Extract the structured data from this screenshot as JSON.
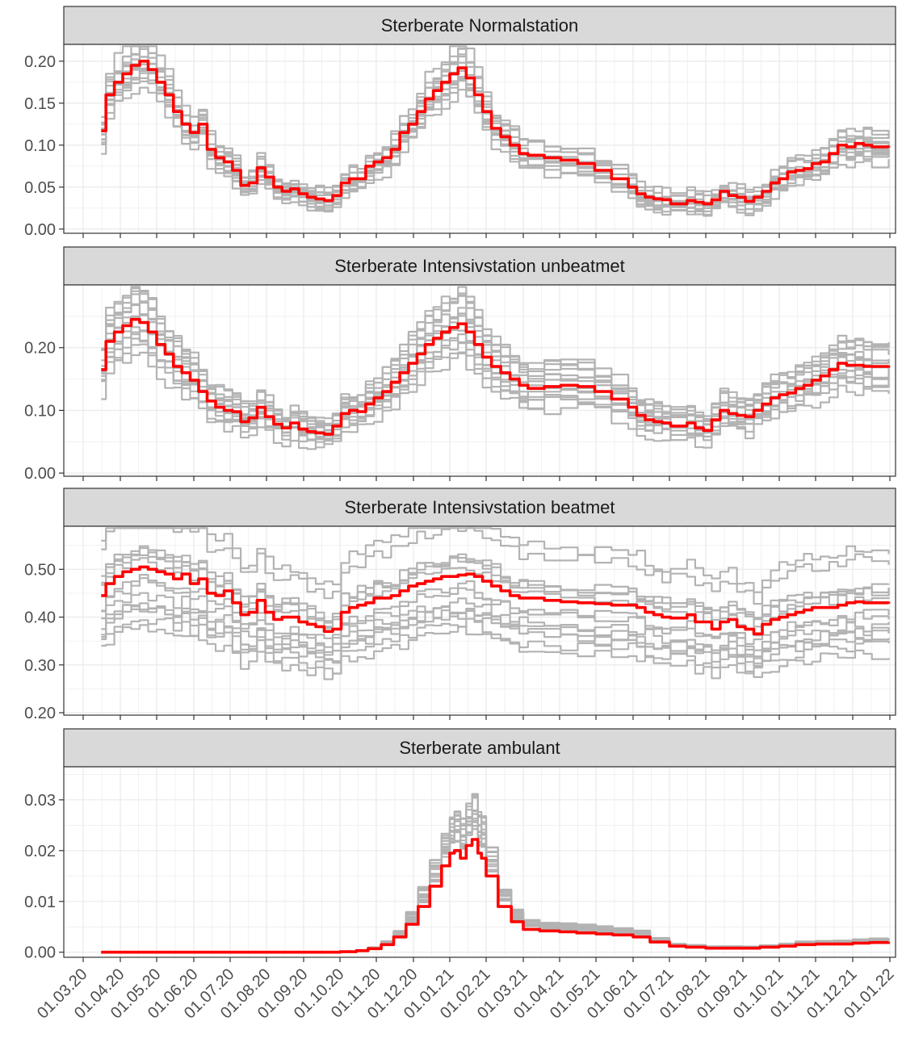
{
  "chart_data": {
    "type": "line",
    "facet_layout": "stacked-vertical",
    "grid": true,
    "legend": "none",
    "x_axis": {
      "type": "date",
      "range": [
        "2020-03-01",
        "2022-01-01"
      ],
      "tick_labels": [
        "01.03.20",
        "01.04.20",
        "01.05.20",
        "01.06.20",
        "01.07.20",
        "01.08.20",
        "01.09.20",
        "01.10.20",
        "01.11.20",
        "01.12.20",
        "01.01.21",
        "01.02.21",
        "01.03.21",
        "01.04.21",
        "01.05.21",
        "01.06.21",
        "01.07.21",
        "01.08.21",
        "01.09.21",
        "01.10.21",
        "01.11.21",
        "01.12.21",
        "01.01.22"
      ],
      "tick_dates": [
        "2020-03-01",
        "2020-04-01",
        "2020-05-01",
        "2020-06-01",
        "2020-07-01",
        "2020-08-01",
        "2020-09-01",
        "2020-10-01",
        "2020-11-01",
        "2020-12-01",
        "2021-01-01",
        "2021-02-01",
        "2021-03-01",
        "2021-04-01",
        "2021-05-01",
        "2021-06-01",
        "2021-07-01",
        "2021-08-01",
        "2021-09-01",
        "2021-10-01",
        "2021-11-01",
        "2021-12-01",
        "2022-01-01"
      ]
    },
    "colors": {
      "highlight": "#ff0000",
      "other": "#b3b3b3",
      "strip": "#d9d9d9",
      "grid": "#ebebeb",
      "border": "#333333"
    },
    "panels": [
      {
        "title": "Sterberate Normalstation",
        "ylim": [
          -0.005,
          0.22
        ],
        "y_ticks": [
          0.0,
          0.05,
          0.1,
          0.15,
          0.2
        ],
        "y_tick_labels": [
          "0.00",
          "0.05",
          "0.10",
          "0.15",
          "0.20"
        ],
        "highlight_series": {
          "x": [
            "2020-03-16",
            "2020-03-20",
            "2020-03-27",
            "2020-04-03",
            "2020-04-10",
            "2020-04-17",
            "2020-04-24",
            "2020-05-01",
            "2020-05-08",
            "2020-05-15",
            "2020-05-22",
            "2020-05-29",
            "2020-06-05",
            "2020-06-12",
            "2020-06-19",
            "2020-06-26",
            "2020-07-03",
            "2020-07-10",
            "2020-07-17",
            "2020-07-24",
            "2020-07-31",
            "2020-08-07",
            "2020-08-14",
            "2020-08-21",
            "2020-08-28",
            "2020-09-04",
            "2020-09-11",
            "2020-09-18",
            "2020-09-25",
            "2020-10-02",
            "2020-10-09",
            "2020-10-16",
            "2020-10-23",
            "2020-10-30",
            "2020-11-06",
            "2020-11-13",
            "2020-11-20",
            "2020-11-27",
            "2020-12-04",
            "2020-12-11",
            "2020-12-18",
            "2020-12-25",
            "2021-01-01",
            "2021-01-08",
            "2021-01-15",
            "2021-01-22",
            "2021-01-29",
            "2021-02-05",
            "2021-02-12",
            "2021-02-19",
            "2021-02-26",
            "2021-03-05",
            "2021-03-19",
            "2021-04-02",
            "2021-04-16",
            "2021-04-30",
            "2021-05-14",
            "2021-05-28",
            "2021-06-04",
            "2021-06-11",
            "2021-06-18",
            "2021-06-25",
            "2021-07-02",
            "2021-07-16",
            "2021-07-23",
            "2021-07-30",
            "2021-08-06",
            "2021-08-13",
            "2021-08-20",
            "2021-08-27",
            "2021-09-03",
            "2021-09-10",
            "2021-09-17",
            "2021-09-24",
            "2021-10-01",
            "2021-10-08",
            "2021-10-15",
            "2021-10-22",
            "2021-10-29",
            "2021-11-05",
            "2021-11-12",
            "2021-11-19",
            "2021-11-26",
            "2021-12-03",
            "2021-12-10",
            "2021-12-17",
            "2021-12-31"
          ],
          "y": [
            0.117,
            0.16,
            0.175,
            0.185,
            0.195,
            0.2,
            0.19,
            0.175,
            0.16,
            0.14,
            0.125,
            0.115,
            0.125,
            0.095,
            0.085,
            0.08,
            0.07,
            0.052,
            0.055,
            0.073,
            0.062,
            0.05,
            0.045,
            0.048,
            0.042,
            0.038,
            0.036,
            0.034,
            0.04,
            0.055,
            0.06,
            0.06,
            0.075,
            0.08,
            0.085,
            0.095,
            0.115,
            0.125,
            0.14,
            0.155,
            0.165,
            0.175,
            0.185,
            0.192,
            0.18,
            0.16,
            0.14,
            0.12,
            0.11,
            0.1,
            0.09,
            0.088,
            0.085,
            0.082,
            0.078,
            0.07,
            0.06,
            0.05,
            0.042,
            0.038,
            0.036,
            0.035,
            0.03,
            0.034,
            0.032,
            0.03,
            0.035,
            0.045,
            0.04,
            0.038,
            0.033,
            0.038,
            0.045,
            0.055,
            0.06,
            0.068,
            0.07,
            0.072,
            0.078,
            0.08,
            0.09,
            0.1,
            0.098,
            0.102,
            0.1,
            0.098,
            0.097
          ]
        },
        "other_series_count": 14
      },
      {
        "title": "Sterberate Intensivstation unbeatmet",
        "ylim": [
          -0.005,
          0.3
        ],
        "y_ticks": [
          0.0,
          0.1,
          0.2
        ],
        "y_tick_labels": [
          "0.00",
          "0.10",
          "0.20"
        ],
        "highlight_series": {
          "x": [
            "2020-03-16",
            "2020-03-20",
            "2020-03-27",
            "2020-04-03",
            "2020-04-10",
            "2020-04-17",
            "2020-04-24",
            "2020-05-01",
            "2020-05-08",
            "2020-05-15",
            "2020-05-22",
            "2020-05-29",
            "2020-06-05",
            "2020-06-12",
            "2020-06-19",
            "2020-06-26",
            "2020-07-03",
            "2020-07-10",
            "2020-07-17",
            "2020-07-24",
            "2020-07-31",
            "2020-08-07",
            "2020-08-14",
            "2020-08-21",
            "2020-08-28",
            "2020-09-04",
            "2020-09-11",
            "2020-09-18",
            "2020-09-25",
            "2020-10-02",
            "2020-10-09",
            "2020-10-16",
            "2020-10-23",
            "2020-10-30",
            "2020-11-06",
            "2020-11-13",
            "2020-11-20",
            "2020-11-27",
            "2020-12-04",
            "2020-12-11",
            "2020-12-18",
            "2020-12-25",
            "2021-01-01",
            "2021-01-08",
            "2021-01-15",
            "2021-01-22",
            "2021-01-29",
            "2021-02-05",
            "2021-02-12",
            "2021-02-19",
            "2021-02-26",
            "2021-03-05",
            "2021-03-19",
            "2021-04-02",
            "2021-04-16",
            "2021-04-30",
            "2021-05-14",
            "2021-05-28",
            "2021-06-04",
            "2021-06-11",
            "2021-06-18",
            "2021-06-25",
            "2021-07-02",
            "2021-07-16",
            "2021-07-23",
            "2021-07-30",
            "2021-08-06",
            "2021-08-13",
            "2021-08-20",
            "2021-08-27",
            "2021-09-03",
            "2021-09-10",
            "2021-09-17",
            "2021-09-24",
            "2021-10-01",
            "2021-10-08",
            "2021-10-15",
            "2021-10-22",
            "2021-10-29",
            "2021-11-05",
            "2021-11-12",
            "2021-11-19",
            "2021-11-26",
            "2021-12-03",
            "2021-12-10",
            "2021-12-17",
            "2021-12-31"
          ],
          "y": [
            0.165,
            0.21,
            0.225,
            0.235,
            0.245,
            0.24,
            0.225,
            0.205,
            0.19,
            0.17,
            0.16,
            0.148,
            0.13,
            0.115,
            0.105,
            0.1,
            0.098,
            0.082,
            0.088,
            0.105,
            0.09,
            0.078,
            0.072,
            0.08,
            0.07,
            0.066,
            0.064,
            0.062,
            0.075,
            0.095,
            0.1,
            0.098,
            0.11,
            0.12,
            0.13,
            0.145,
            0.16,
            0.175,
            0.19,
            0.205,
            0.215,
            0.225,
            0.232,
            0.238,
            0.225,
            0.205,
            0.185,
            0.17,
            0.16,
            0.15,
            0.14,
            0.135,
            0.138,
            0.14,
            0.138,
            0.13,
            0.118,
            0.105,
            0.092,
            0.085,
            0.082,
            0.08,
            0.075,
            0.08,
            0.072,
            0.068,
            0.085,
            0.1,
            0.095,
            0.092,
            0.09,
            0.1,
            0.11,
            0.12,
            0.125,
            0.128,
            0.135,
            0.14,
            0.148,
            0.155,
            0.165,
            0.175,
            0.172,
            0.172,
            0.17,
            0.17,
            0.168
          ]
        },
        "other_series_count": 14
      },
      {
        "title": "Sterberate Intensivstation beatmet",
        "ylim": [
          0.195,
          0.59
        ],
        "y_ticks": [
          0.2,
          0.3,
          0.4,
          0.5
        ],
        "y_tick_labels": [
          "0.20",
          "0.30",
          "0.40",
          "0.50"
        ],
        "highlight_series": {
          "x": [
            "2020-03-16",
            "2020-03-20",
            "2020-03-27",
            "2020-04-03",
            "2020-04-10",
            "2020-04-17",
            "2020-04-24",
            "2020-05-01",
            "2020-05-08",
            "2020-05-15",
            "2020-05-22",
            "2020-05-29",
            "2020-06-05",
            "2020-06-12",
            "2020-06-19",
            "2020-06-26",
            "2020-07-03",
            "2020-07-10",
            "2020-07-17",
            "2020-07-24",
            "2020-07-31",
            "2020-08-07",
            "2020-08-14",
            "2020-08-21",
            "2020-08-28",
            "2020-09-04",
            "2020-09-11",
            "2020-09-18",
            "2020-09-25",
            "2020-10-02",
            "2020-10-09",
            "2020-10-16",
            "2020-10-23",
            "2020-10-30",
            "2020-11-06",
            "2020-11-13",
            "2020-11-20",
            "2020-11-27",
            "2020-12-04",
            "2020-12-11",
            "2020-12-18",
            "2020-12-25",
            "2021-01-01",
            "2021-01-08",
            "2021-01-15",
            "2021-01-22",
            "2021-01-29",
            "2021-02-05",
            "2021-02-12",
            "2021-02-19",
            "2021-02-26",
            "2021-03-05",
            "2021-03-19",
            "2021-04-02",
            "2021-04-16",
            "2021-04-30",
            "2021-05-14",
            "2021-05-28",
            "2021-06-04",
            "2021-06-11",
            "2021-06-18",
            "2021-06-25",
            "2021-07-02",
            "2021-07-16",
            "2021-07-23",
            "2021-07-30",
            "2021-08-06",
            "2021-08-13",
            "2021-08-20",
            "2021-08-27",
            "2021-09-03",
            "2021-09-10",
            "2021-09-17",
            "2021-09-24",
            "2021-10-01",
            "2021-10-08",
            "2021-10-15",
            "2021-10-22",
            "2021-10-29",
            "2021-11-05",
            "2021-11-12",
            "2021-11-19",
            "2021-11-26",
            "2021-12-03",
            "2021-12-10",
            "2021-12-17",
            "2021-12-31"
          ],
          "y": [
            0.445,
            0.47,
            0.485,
            0.495,
            0.5,
            0.505,
            0.5,
            0.495,
            0.49,
            0.48,
            0.49,
            0.47,
            0.48,
            0.45,
            0.445,
            0.455,
            0.43,
            0.405,
            0.41,
            0.435,
            0.41,
            0.395,
            0.4,
            0.4,
            0.39,
            0.385,
            0.38,
            0.37,
            0.375,
            0.41,
            0.42,
            0.425,
            0.43,
            0.44,
            0.44,
            0.445,
            0.455,
            0.465,
            0.47,
            0.475,
            0.48,
            0.485,
            0.485,
            0.488,
            0.49,
            0.485,
            0.475,
            0.465,
            0.455,
            0.445,
            0.44,
            0.44,
            0.435,
            0.432,
            0.43,
            0.428,
            0.425,
            0.425,
            0.42,
            0.41,
            0.405,
            0.4,
            0.398,
            0.405,
            0.39,
            0.39,
            0.375,
            0.39,
            0.395,
            0.38,
            0.375,
            0.365,
            0.385,
            0.395,
            0.4,
            0.405,
            0.41,
            0.415,
            0.42,
            0.42,
            0.42,
            0.425,
            0.43,
            0.432,
            0.43,
            0.43,
            0.428
          ]
        },
        "other_series_count": 14
      },
      {
        "title": "Sterberate ambulant",
        "ylim": [
          -0.001,
          0.0365
        ],
        "y_ticks": [
          0.0,
          0.01,
          0.02,
          0.03
        ],
        "y_tick_labels": [
          "0.00",
          "0.01",
          "0.02",
          "0.03"
        ],
        "highlight_series": {
          "x": [
            "2020-03-16",
            "2020-10-01",
            "2020-10-15",
            "2020-10-25",
            "2020-11-05",
            "2020-11-15",
            "2020-11-25",
            "2020-12-05",
            "2020-12-15",
            "2020-12-25",
            "2021-01-01",
            "2021-01-05",
            "2021-01-10",
            "2021-01-15",
            "2021-01-20",
            "2021-01-25",
            "2021-01-28",
            "2021-02-01",
            "2021-02-10",
            "2021-02-20",
            "2021-03-01",
            "2021-03-15",
            "2021-04-01",
            "2021-04-15",
            "2021-05-01",
            "2021-05-15",
            "2021-06-01",
            "2021-06-15",
            "2021-07-01",
            "2021-07-15",
            "2021-08-01",
            "2021-08-15",
            "2021-09-01",
            "2021-09-15",
            "2021-10-01",
            "2021-10-15",
            "2021-11-01",
            "2021-11-15",
            "2021-12-01",
            "2021-12-15",
            "2021-12-31"
          ],
          "y": [
            0.0,
            0.0001,
            0.0003,
            0.0007,
            0.0015,
            0.003,
            0.0055,
            0.009,
            0.013,
            0.017,
            0.0195,
            0.02,
            0.0185,
            0.021,
            0.0222,
            0.0195,
            0.0185,
            0.015,
            0.009,
            0.006,
            0.0045,
            0.0042,
            0.004,
            0.0038,
            0.0036,
            0.0034,
            0.003,
            0.002,
            0.0012,
            0.001,
            0.0008,
            0.0008,
            0.0008,
            0.001,
            0.0012,
            0.0015,
            0.0016,
            0.0016,
            0.0018,
            0.0019,
            0.002
          ]
        },
        "other_series_count": 14
      }
    ]
  }
}
